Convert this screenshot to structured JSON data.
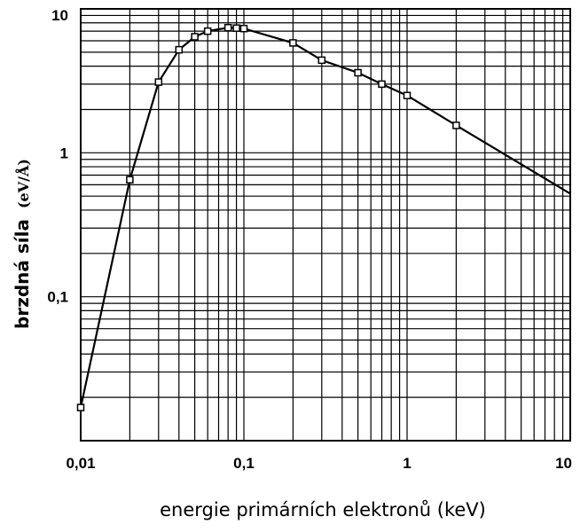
{
  "chart_data": {
    "type": "line",
    "x_scale": "log",
    "y_scale": "log",
    "xlim": [
      0.01,
      10
    ],
    "ylim": [
      0.01,
      10
    ],
    "grid": true,
    "x_ticks": [
      "0,01",
      "0,1",
      "1",
      "10"
    ],
    "y_ticks": [
      "0,1",
      "1",
      "10"
    ],
    "xlabel": "energie primárních elektronů (keV)",
    "ylabel": "brzdná síla",
    "ylabel_unit": "(eV/Å)",
    "series": [
      {
        "x": [
          0.01,
          0.02,
          0.03,
          0.04,
          0.05,
          0.06,
          0.08,
          0.09,
          0.1,
          0.2,
          0.3,
          0.5,
          0.7,
          1,
          2,
          10
        ],
        "y": [
          0.017,
          0.65,
          3.1,
          5.2,
          6.4,
          7.0,
          7.4,
          7.35,
          7.3,
          5.8,
          4.4,
          3.6,
          3.0,
          2.5,
          1.55,
          0.52
        ],
        "markers": [
          true,
          true,
          true,
          true,
          true,
          true,
          true,
          true,
          true,
          true,
          true,
          true,
          true,
          true,
          true,
          false
        ]
      }
    ]
  }
}
